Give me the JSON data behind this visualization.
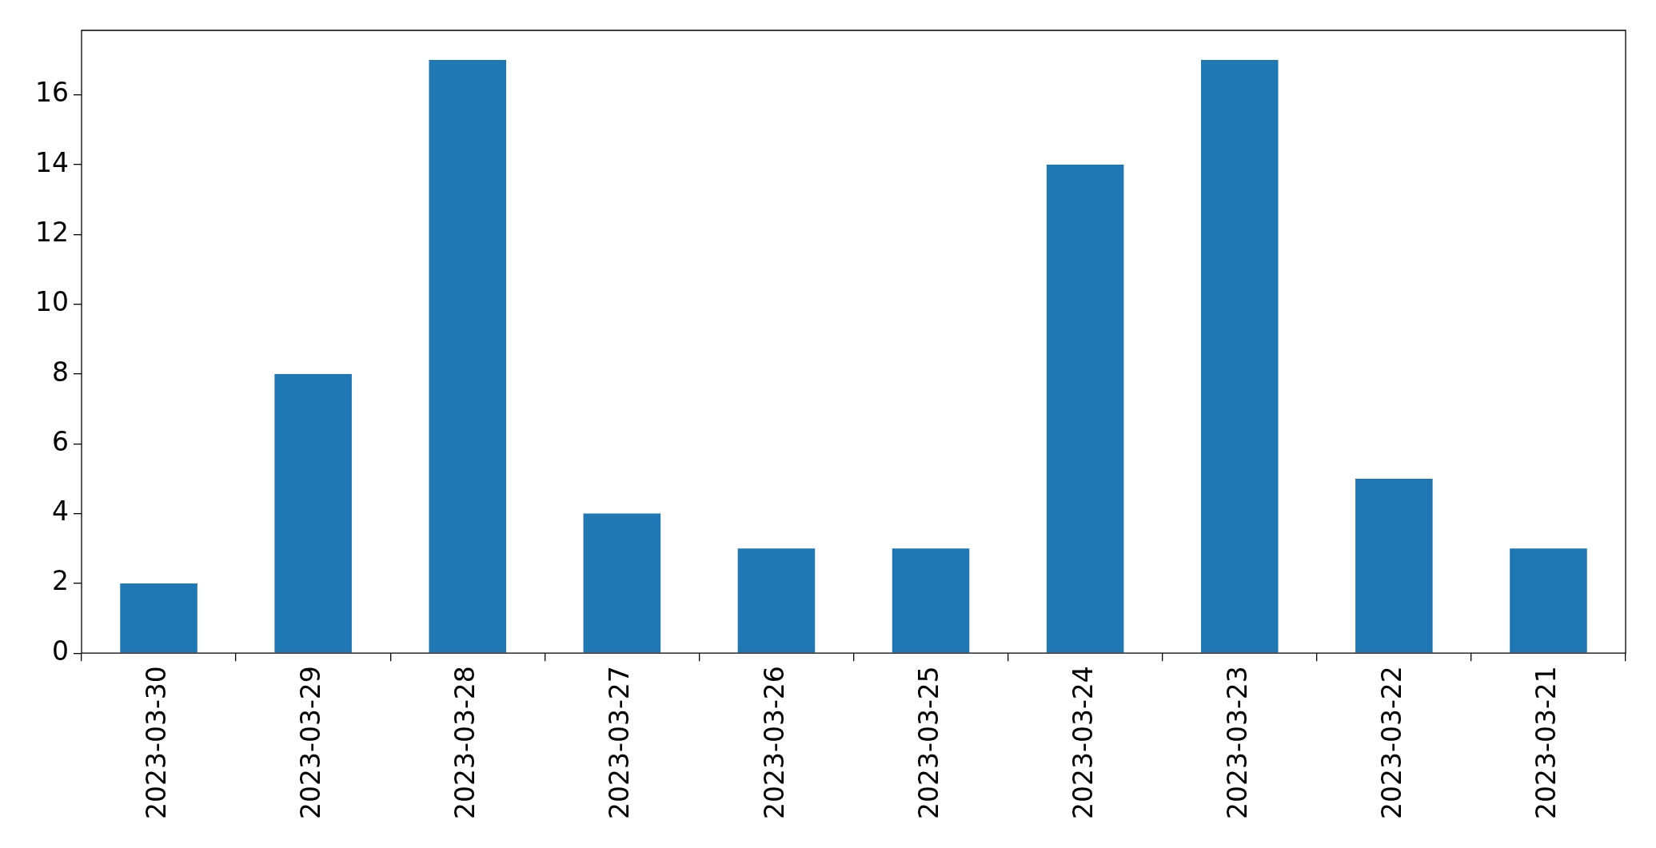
{
  "chart_data": {
    "type": "bar",
    "categories": [
      "2023-03-30",
      "2023-03-29",
      "2023-03-28",
      "2023-03-27",
      "2023-03-26",
      "2023-03-25",
      "2023-03-24",
      "2023-03-23",
      "2023-03-22",
      "2023-03-21"
    ],
    "values": [
      2,
      8,
      17,
      4,
      3,
      3,
      14,
      17,
      5,
      3
    ],
    "color": "#1f77b4",
    "ylim": [
      0,
      17.85
    ],
    "yticks": [
      0,
      2,
      4,
      6,
      8,
      10,
      12,
      14,
      16
    ],
    "grid": false
  }
}
